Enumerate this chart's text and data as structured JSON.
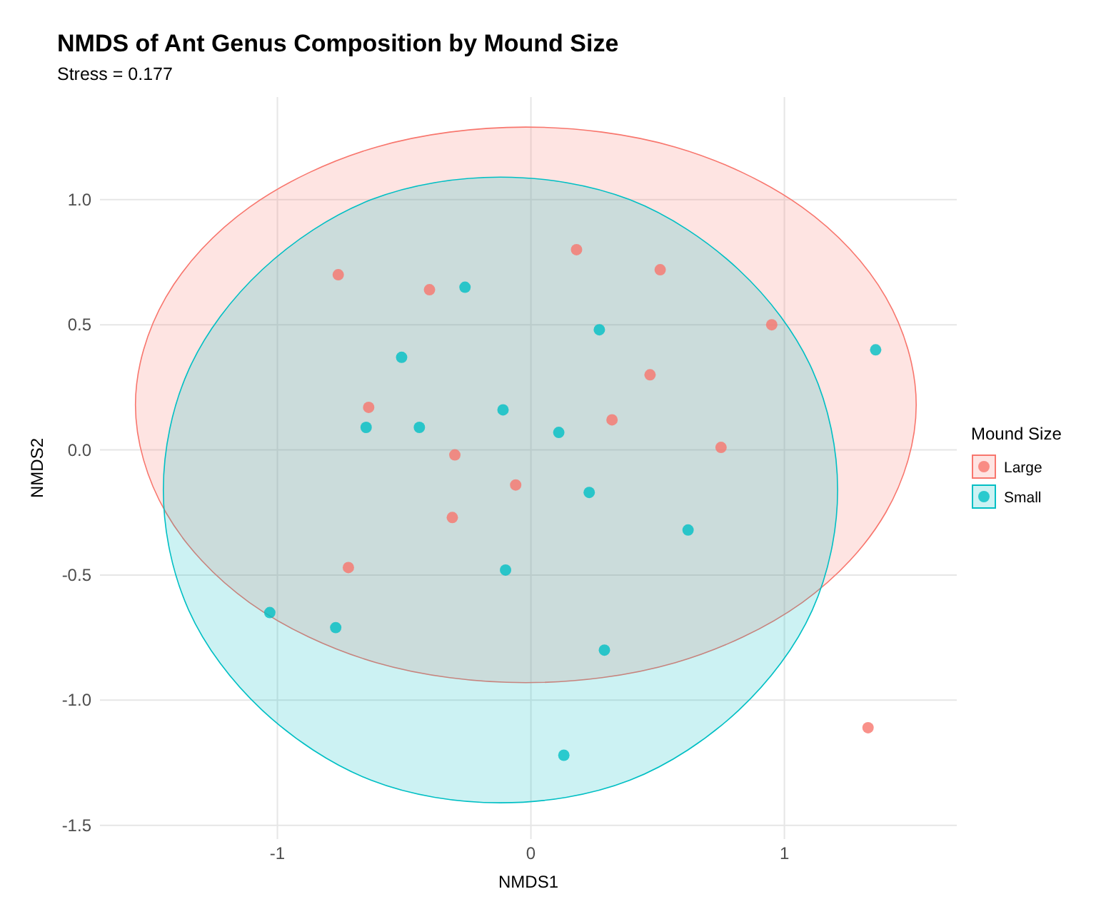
{
  "chart_data": {
    "type": "scatter",
    "title": "NMDS of Ant Genus Composition by Mound Size",
    "subtitle": "Stress = 0.177",
    "xlabel": "NMDS1",
    "ylabel": "NMDS2",
    "legend_title": "Mound Size",
    "legend": "right",
    "grid": true,
    "marker": "circle",
    "xlim": [
      -1.7,
      1.68
    ],
    "ylim": [
      -1.555,
      1.41
    ],
    "xticks": [
      -1,
      0,
      1
    ],
    "yticks": [
      {
        "value": -1.5,
        "label": "-1.5"
      },
      {
        "value": -1,
        "label": "-1.0"
      },
      {
        "value": -0.5,
        "label": "-0.5"
      },
      {
        "value": 0,
        "label": "0.0"
      },
      {
        "value": 0.5,
        "label": "0.5"
      },
      {
        "value": 1,
        "label": "1.0"
      }
    ],
    "series": [
      {
        "type": "area",
        "marker": "none",
        "color": "#f8766d",
        "x": [
          1.52,
          1.4,
          1.07,
          0.57,
          -0.02,
          -0.61,
          -1.11,
          -1.44,
          -1.56,
          -1.44,
          -1.11,
          -0.61,
          -0.02,
          0.57,
          1.07,
          1.4
        ],
        "values": [
          0.18,
          0.61,
          0.97,
          1.21,
          1.29,
          1.21,
          0.97,
          0.61,
          0.18,
          -0.25,
          -0.61,
          -0.85,
          -0.93,
          -0.85,
          -0.61,
          -0.25
        ]
      },
      {
        "type": "area",
        "marker": "none",
        "color": "#00bfc4",
        "x": [
          1.21,
          1.11,
          0.82,
          0.39,
          -0.12,
          -0.63,
          -1.06,
          -1.35,
          -1.45,
          -1.35,
          -1.06,
          -0.63,
          -0.12,
          0.39,
          0.82,
          1.11
        ],
        "values": [
          -0.16,
          0.32,
          0.72,
          1.0,
          1.09,
          1.0,
          0.72,
          0.32,
          -0.16,
          -0.64,
          -1.04,
          -1.32,
          -1.41,
          -1.32,
          -1.04,
          -0.64
        ]
      },
      {
        "name": "Large",
        "color": "#f8766d",
        "x": [
          -0.76,
          -0.4,
          0.18,
          0.51,
          0.95,
          -0.64,
          0.47,
          0.32,
          -0.3,
          -0.06,
          -0.31,
          0.75,
          -0.72,
          1.33
        ],
        "values": [
          0.7,
          0.64,
          0.8,
          0.72,
          0.5,
          0.17,
          0.3,
          0.12,
          -0.02,
          -0.14,
          -0.27,
          0.01,
          -0.47,
          -1.11
        ]
      },
      {
        "name": "Small",
        "color": "#00bfc4",
        "x": [
          -0.26,
          0.27,
          1.36,
          -0.51,
          -0.65,
          -0.44,
          -0.11,
          0.11,
          0.23,
          0.62,
          -0.1,
          -1.03,
          -0.77,
          0.29,
          0.13
        ],
        "values": [
          0.65,
          0.48,
          0.4,
          0.37,
          0.09,
          0.09,
          0.16,
          0.07,
          -0.17,
          -0.32,
          -0.48,
          -0.65,
          -0.71,
          -0.8,
          -1.22
        ]
      }
    ]
  }
}
